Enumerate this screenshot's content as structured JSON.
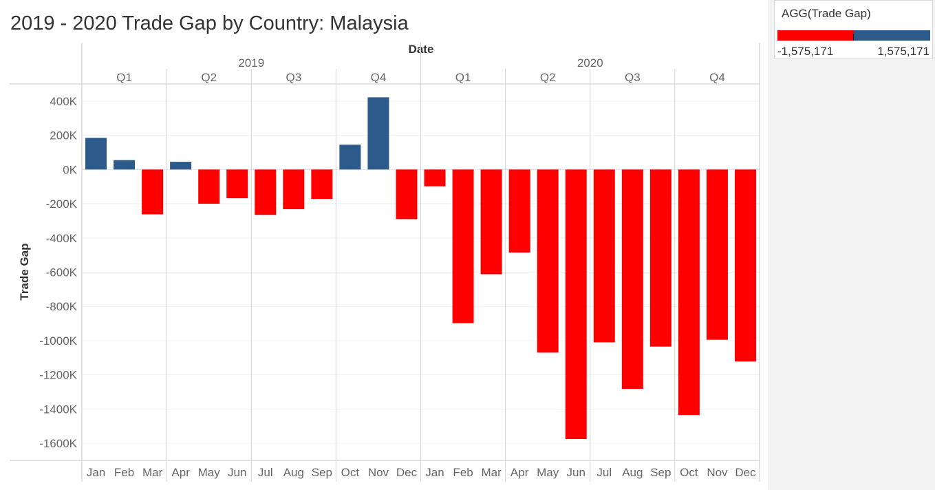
{
  "colors": {
    "positive": "#2c5a8a",
    "negative": "#ff0000"
  },
  "chart_data": {
    "type": "bar",
    "title": "2019 - 2020 Trade Gap by Country: Malaysia",
    "column_header": "Date",
    "xlabel": "",
    "ylabel": "Trade Gap",
    "years": [
      {
        "label": "2019",
        "quarters": [
          "Q1",
          "Q2",
          "Q3",
          "Q4"
        ]
      },
      {
        "label": "2020",
        "quarters": [
          "Q1",
          "Q2",
          "Q3",
          "Q4"
        ]
      }
    ],
    "categories": [
      "Jan",
      "Feb",
      "Mar",
      "Apr",
      "May",
      "Jun",
      "Jul",
      "Aug",
      "Sep",
      "Oct",
      "Nov",
      "Dec",
      "Jan",
      "Feb",
      "Mar",
      "Apr",
      "May",
      "Jun",
      "Jul",
      "Aug",
      "Sep",
      "Oct",
      "Nov",
      "Dec"
    ],
    "values": [
      185000,
      55000,
      -262000,
      45000,
      -200000,
      -168000,
      -265000,
      -232000,
      -172000,
      145000,
      422000,
      -290000,
      -98000,
      -898000,
      -612000,
      -485000,
      -1070000,
      -1575171,
      -1010000,
      -1282000,
      -1035000,
      -1435000,
      -995000,
      -1122000
    ],
    "ylim": [
      -1700000,
      500000
    ],
    "yticks": [
      400000,
      200000,
      0,
      -200000,
      -400000,
      -600000,
      -800000,
      -1000000,
      -1200000,
      -1400000,
      -1600000
    ],
    "ytick_labels": [
      "400K",
      "200K",
      "0K",
      "-200K",
      "-400K",
      "-600K",
      "-800K",
      "-1000K",
      "-1200K",
      "-1400K",
      "-1600K"
    ],
    "legend": {
      "title": "AGG(Trade Gap)",
      "min_label": "-1,575,171",
      "max_label": "1,575,171",
      "placement": "top-right"
    }
  }
}
